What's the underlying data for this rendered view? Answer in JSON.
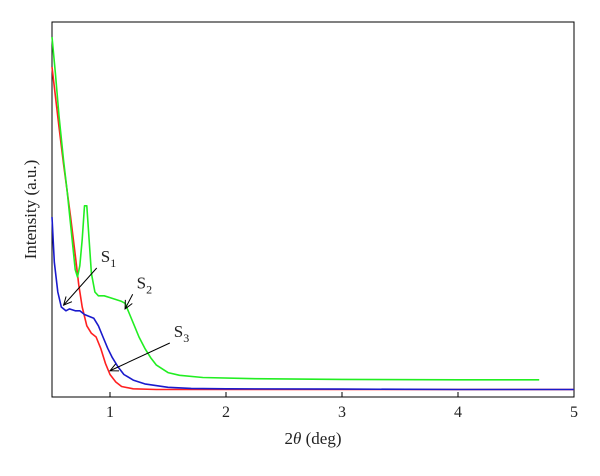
{
  "chart_data": {
    "type": "line",
    "title": "",
    "xlabel_pre": "2",
    "xlabel_theta": "θ",
    "xlabel_post": " (deg)",
    "ylabel": "Intensity (a.u.)",
    "xlim": [
      0.5,
      5
    ],
    "ylim": [
      0,
      100
    ],
    "x_ticks": [
      1,
      2,
      3,
      4,
      5
    ],
    "y_ticks_shown": false,
    "grid": false,
    "legend": "none",
    "series": [
      {
        "color": "#ff2020",
        "points": [
          [
            0.5,
            88
          ],
          [
            0.53,
            80
          ],
          [
            0.56,
            72
          ],
          [
            0.6,
            62
          ],
          [
            0.63,
            55
          ],
          [
            0.66,
            48
          ],
          [
            0.7,
            38
          ],
          [
            0.73,
            30
          ],
          [
            0.76,
            24
          ],
          [
            0.8,
            19
          ],
          [
            0.84,
            17
          ],
          [
            0.88,
            16
          ],
          [
            0.92,
            13
          ],
          [
            0.96,
            9
          ],
          [
            1.0,
            6
          ],
          [
            1.05,
            4
          ],
          [
            1.1,
            2.8
          ],
          [
            1.2,
            2.2
          ],
          [
            1.4,
            2.0
          ],
          [
            2.0,
            2.0
          ],
          [
            3.0,
            2.0
          ],
          [
            4.0,
            2.0
          ],
          [
            5.0,
            2.0
          ]
        ]
      },
      {
        "color": "#22ee22",
        "points": [
          [
            0.5,
            96
          ],
          [
            0.53,
            86
          ],
          [
            0.56,
            75
          ],
          [
            0.6,
            63
          ],
          [
            0.63,
            55
          ],
          [
            0.66,
            46
          ],
          [
            0.7,
            34
          ],
          [
            0.72,
            32
          ],
          [
            0.74,
            35
          ],
          [
            0.76,
            42
          ],
          [
            0.78,
            51
          ],
          [
            0.8,
            51
          ],
          [
            0.82,
            42
          ],
          [
            0.84,
            33
          ],
          [
            0.87,
            28
          ],
          [
            0.9,
            27
          ],
          [
            0.95,
            27
          ],
          [
            1.0,
            26.5
          ],
          [
            1.05,
            26
          ],
          [
            1.1,
            25.5
          ],
          [
            1.13,
            25
          ],
          [
            1.17,
            22
          ],
          [
            1.21,
            19
          ],
          [
            1.25,
            16
          ],
          [
            1.3,
            13
          ],
          [
            1.35,
            10.5
          ],
          [
            1.4,
            8.5
          ],
          [
            1.5,
            6.5
          ],
          [
            1.6,
            5.8
          ],
          [
            1.8,
            5.2
          ],
          [
            2.2,
            4.9
          ],
          [
            3.0,
            4.7
          ],
          [
            4.0,
            4.6
          ],
          [
            4.7,
            4.6
          ]
        ]
      },
      {
        "color": "#1a1acc",
        "points": [
          [
            0.5,
            48
          ],
          [
            0.52,
            36
          ],
          [
            0.55,
            28
          ],
          [
            0.58,
            24
          ],
          [
            0.62,
            23
          ],
          [
            0.65,
            23.5
          ],
          [
            0.7,
            23
          ],
          [
            0.74,
            23
          ],
          [
            0.78,
            22
          ],
          [
            0.82,
            21.5
          ],
          [
            0.86,
            21
          ],
          [
            0.9,
            19
          ],
          [
            0.94,
            16
          ],
          [
            0.98,
            13
          ],
          [
            1.02,
            10.5
          ],
          [
            1.07,
            8
          ],
          [
            1.12,
            6
          ],
          [
            1.2,
            4.5
          ],
          [
            1.3,
            3.5
          ],
          [
            1.5,
            2.6
          ],
          [
            1.7,
            2.3
          ],
          [
            2.0,
            2.2
          ],
          [
            3.0,
            2.1
          ],
          [
            4.0,
            2.0
          ],
          [
            5.0,
            2.0
          ]
        ]
      }
    ],
    "annotations": [
      {
        "label": "S",
        "sub": "1",
        "text_x": 0.92,
        "text_y": 36,
        "arrow_to_x": 0.6,
        "arrow_to_y": 24.5
      },
      {
        "label": "S",
        "sub": "2",
        "text_x": 1.23,
        "text_y": 29,
        "arrow_to_x": 1.13,
        "arrow_to_y": 23.5
      },
      {
        "label": "S",
        "sub": "3",
        "text_x": 1.55,
        "text_y": 16,
        "arrow_to_x": 1.0,
        "arrow_to_y": 7
      }
    ]
  }
}
